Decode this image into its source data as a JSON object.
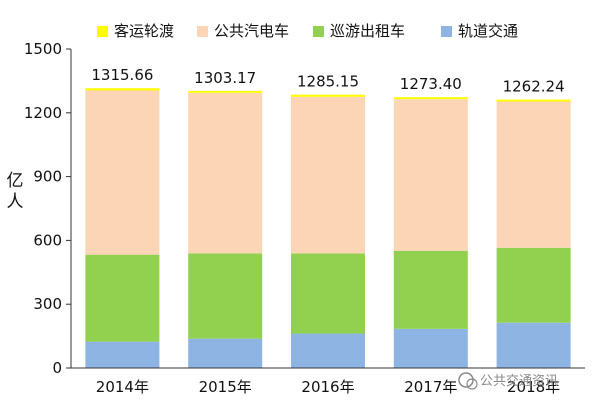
{
  "chart_data": {
    "type": "bar",
    "stacked": true,
    "categories": [
      "2014年",
      "2015年",
      "2016年",
      "2017年",
      "2018年"
    ],
    "series": [
      {
        "name": "轨道交通",
        "color": "#8eb4e3",
        "values": [
          124,
          138,
          162,
          184,
          213
        ]
      },
      {
        "name": "巡游出租车",
        "color": "#92d050",
        "values": [
          409,
          401,
          377,
          367,
          352
        ]
      },
      {
        "name": "公共汽电车",
        "color": "#fbd5b5",
        "values": [
          772,
          755,
          736,
          713,
          688
        ]
      },
      {
        "name": "客运轮渡",
        "color": "#ffff00",
        "values": [
          10.66,
          9.17,
          10.15,
          9.4,
          9.24
        ]
      }
    ],
    "totals": [
      "1315.66",
      "1303.17",
      "1285.15",
      "1273.40",
      "1262.24"
    ],
    "ylabel": "亿\n人",
    "yticks": [
      0,
      300,
      600,
      900,
      1200,
      1500
    ],
    "ylim": [
      0,
      1500
    ],
    "grid": false,
    "legend_position": "top"
  },
  "watermark": {
    "text": "公共交通资讯",
    "icon": "wechat-icon"
  }
}
